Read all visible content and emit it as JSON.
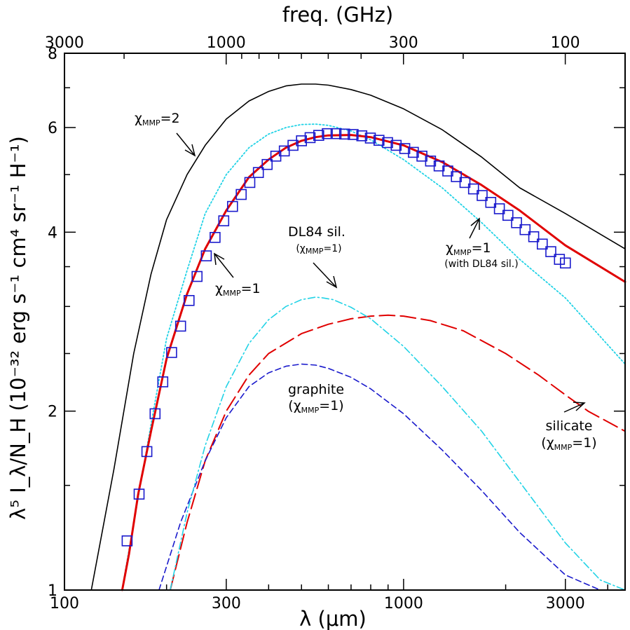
{
  "chart_data": {
    "type": "line",
    "title": "",
    "xlabel": "λ (μm)",
    "ylabel": "λ⁵ I_λ/N_H   (10⁻³² erg s⁻¹ cm⁴ sr⁻¹ H⁻¹)",
    "top_axis_label": "freq.   (GHz)",
    "x_scale": "log",
    "y_scale": "log",
    "xlim": [
      100,
      4500
    ],
    "ylim": [
      1,
      8
    ],
    "x_ticks": [
      100,
      300,
      1000,
      3000
    ],
    "x_tick_labels": [
      "100",
      "300",
      "1000",
      "3000"
    ],
    "y_ticks": [
      1,
      2,
      4,
      6,
      8
    ],
    "y_tick_labels": [
      "1",
      "2",
      "4",
      "6",
      "8"
    ],
    "top_ticks_ghz": [
      3000,
      1000,
      300,
      100
    ],
    "top_tick_labels": [
      "3000",
      "1000",
      "300",
      "100"
    ],
    "series": [
      {
        "key": "chi2",
        "color": "#000000",
        "style": "solid",
        "x": [
          120,
          140,
          160,
          180,
          200,
          230,
          260,
          300,
          350,
          400,
          450,
          500,
          550,
          600,
          700,
          800,
          1000,
          1300,
          1700,
          2200,
          3000,
          4500
        ],
        "y": [
          1.0,
          1.6,
          2.5,
          3.4,
          4.2,
          5.0,
          5.6,
          6.2,
          6.65,
          6.9,
          7.05,
          7.1,
          7.1,
          7.07,
          6.95,
          6.8,
          6.45,
          5.95,
          5.35,
          4.75,
          4.3,
          3.75
        ]
      },
      {
        "key": "dl84_total",
        "color": "#22d3e6",
        "style": "dotted",
        "x": [
          150,
          180,
          200,
          230,
          260,
          300,
          350,
          400,
          450,
          500,
          550,
          600,
          700,
          800,
          1000,
          1300,
          1700,
          2200,
          3000,
          4500
        ],
        "y": [
          1.05,
          1.9,
          2.65,
          3.45,
          4.3,
          5.0,
          5.55,
          5.85,
          6.0,
          6.07,
          6.08,
          6.05,
          5.92,
          5.72,
          5.3,
          4.75,
          4.15,
          3.6,
          3.1,
          2.4
        ]
      },
      {
        "key": "total",
        "color": "#e00000",
        "style": "solid",
        "x": [
          148,
          155,
          165,
          180,
          200,
          230,
          260,
          300,
          350,
          400,
          450,
          500,
          550,
          600,
          700,
          800,
          1000,
          1300,
          1700,
          2200,
          3000,
          4500
        ],
        "y": [
          1.0,
          1.15,
          1.45,
          1.85,
          2.45,
          3.15,
          3.75,
          4.35,
          4.95,
          5.3,
          5.55,
          5.7,
          5.78,
          5.82,
          5.83,
          5.78,
          5.6,
          5.25,
          4.8,
          4.35,
          3.8,
          3.3
        ]
      },
      {
        "key": "silicate",
        "color": "#e00000",
        "style": "longdash",
        "x": [
          205,
          230,
          260,
          300,
          350,
          400,
          500,
          600,
          700,
          800,
          900,
          1000,
          1200,
          1500,
          2000,
          2500,
          3000,
          3500,
          4500
        ],
        "y": [
          1.0,
          1.3,
          1.65,
          2.0,
          2.3,
          2.5,
          2.7,
          2.8,
          2.86,
          2.89,
          2.9,
          2.89,
          2.84,
          2.73,
          2.5,
          2.3,
          2.13,
          2.0,
          1.85
        ]
      },
      {
        "key": "graphite",
        "color": "#1a1acc",
        "style": "shortdash",
        "x": [
          190,
          220,
          260,
          300,
          350,
          400,
          450,
          500,
          550,
          600,
          700,
          800,
          1000,
          1300,
          1700,
          2200,
          3000,
          3800
        ],
        "y": [
          1.0,
          1.3,
          1.65,
          1.95,
          2.2,
          2.32,
          2.38,
          2.4,
          2.39,
          2.36,
          2.28,
          2.18,
          1.98,
          1.72,
          1.47,
          1.25,
          1.06,
          1.0
        ]
      },
      {
        "key": "dl84_sil",
        "color": "#22d3e6",
        "style": "dashdot",
        "x": [
          205,
          230,
          260,
          300,
          350,
          400,
          450,
          500,
          550,
          580,
          620,
          700,
          800,
          1000,
          1300,
          1700,
          2200,
          3000,
          3800,
          4500
        ],
        "y": [
          1.0,
          1.35,
          1.75,
          2.2,
          2.6,
          2.85,
          3.0,
          3.08,
          3.11,
          3.1,
          3.08,
          2.99,
          2.86,
          2.57,
          2.2,
          1.85,
          1.52,
          1.2,
          1.04,
          1.0
        ]
      },
      {
        "key": "data",
        "color": "#1a1acc",
        "style": "markers",
        "x": [
          153,
          166,
          175,
          185,
          195,
          207,
          220,
          233,
          246,
          262,
          278,
          295,
          313,
          332,
          352,
          373,
          396,
          420,
          445,
          472,
          500,
          530,
          562,
          596,
          632,
          670,
          710,
          753,
          798,
          846,
          897,
          951,
          1008,
          1069,
          1133,
          1201,
          1273,
          1350,
          1431,
          1517,
          1608,
          1705,
          1807,
          1916,
          2031,
          2153,
          2282,
          2419,
          2564,
          2718,
          2881,
          3000
        ],
        "y": [
          1.21,
          1.45,
          1.71,
          1.98,
          2.24,
          2.51,
          2.78,
          3.07,
          3.37,
          3.65,
          3.92,
          4.18,
          4.42,
          4.63,
          4.85,
          5.04,
          5.2,
          5.37,
          5.48,
          5.6,
          5.7,
          5.77,
          5.82,
          5.86,
          5.86,
          5.85,
          5.84,
          5.81,
          5.76,
          5.71,
          5.66,
          5.6,
          5.53,
          5.45,
          5.37,
          5.27,
          5.17,
          5.07,
          4.96,
          4.85,
          4.73,
          4.61,
          4.49,
          4.38,
          4.27,
          4.15,
          4.04,
          3.93,
          3.82,
          3.71,
          3.6,
          3.55
        ]
      }
    ],
    "annotations": {
      "chi2": {
        "main": "χ",
        "sub": "MMP",
        "tail": "=2"
      },
      "chi1": {
        "main": "χ",
        "sub": "MMP",
        "tail": "=1"
      },
      "dl84_title": "DL84 sil.",
      "dl84_chi": {
        "open": "(χ",
        "sub": "MMP",
        "tail": "=1)"
      },
      "withdl84_chi": {
        "main": "χ",
        "sub": "MMP",
        "tail": "=1"
      },
      "withdl84_note": "(with DL84 sil.)",
      "graphite_title": "graphite",
      "graphite_chi": {
        "open": "(χ",
        "sub": "MMP",
        "tail": "=1)"
      },
      "silicate_title": "silicate",
      "silicate_chi": {
        "open": "(χ",
        "sub": "MMP",
        "tail": "=1)"
      }
    }
  }
}
